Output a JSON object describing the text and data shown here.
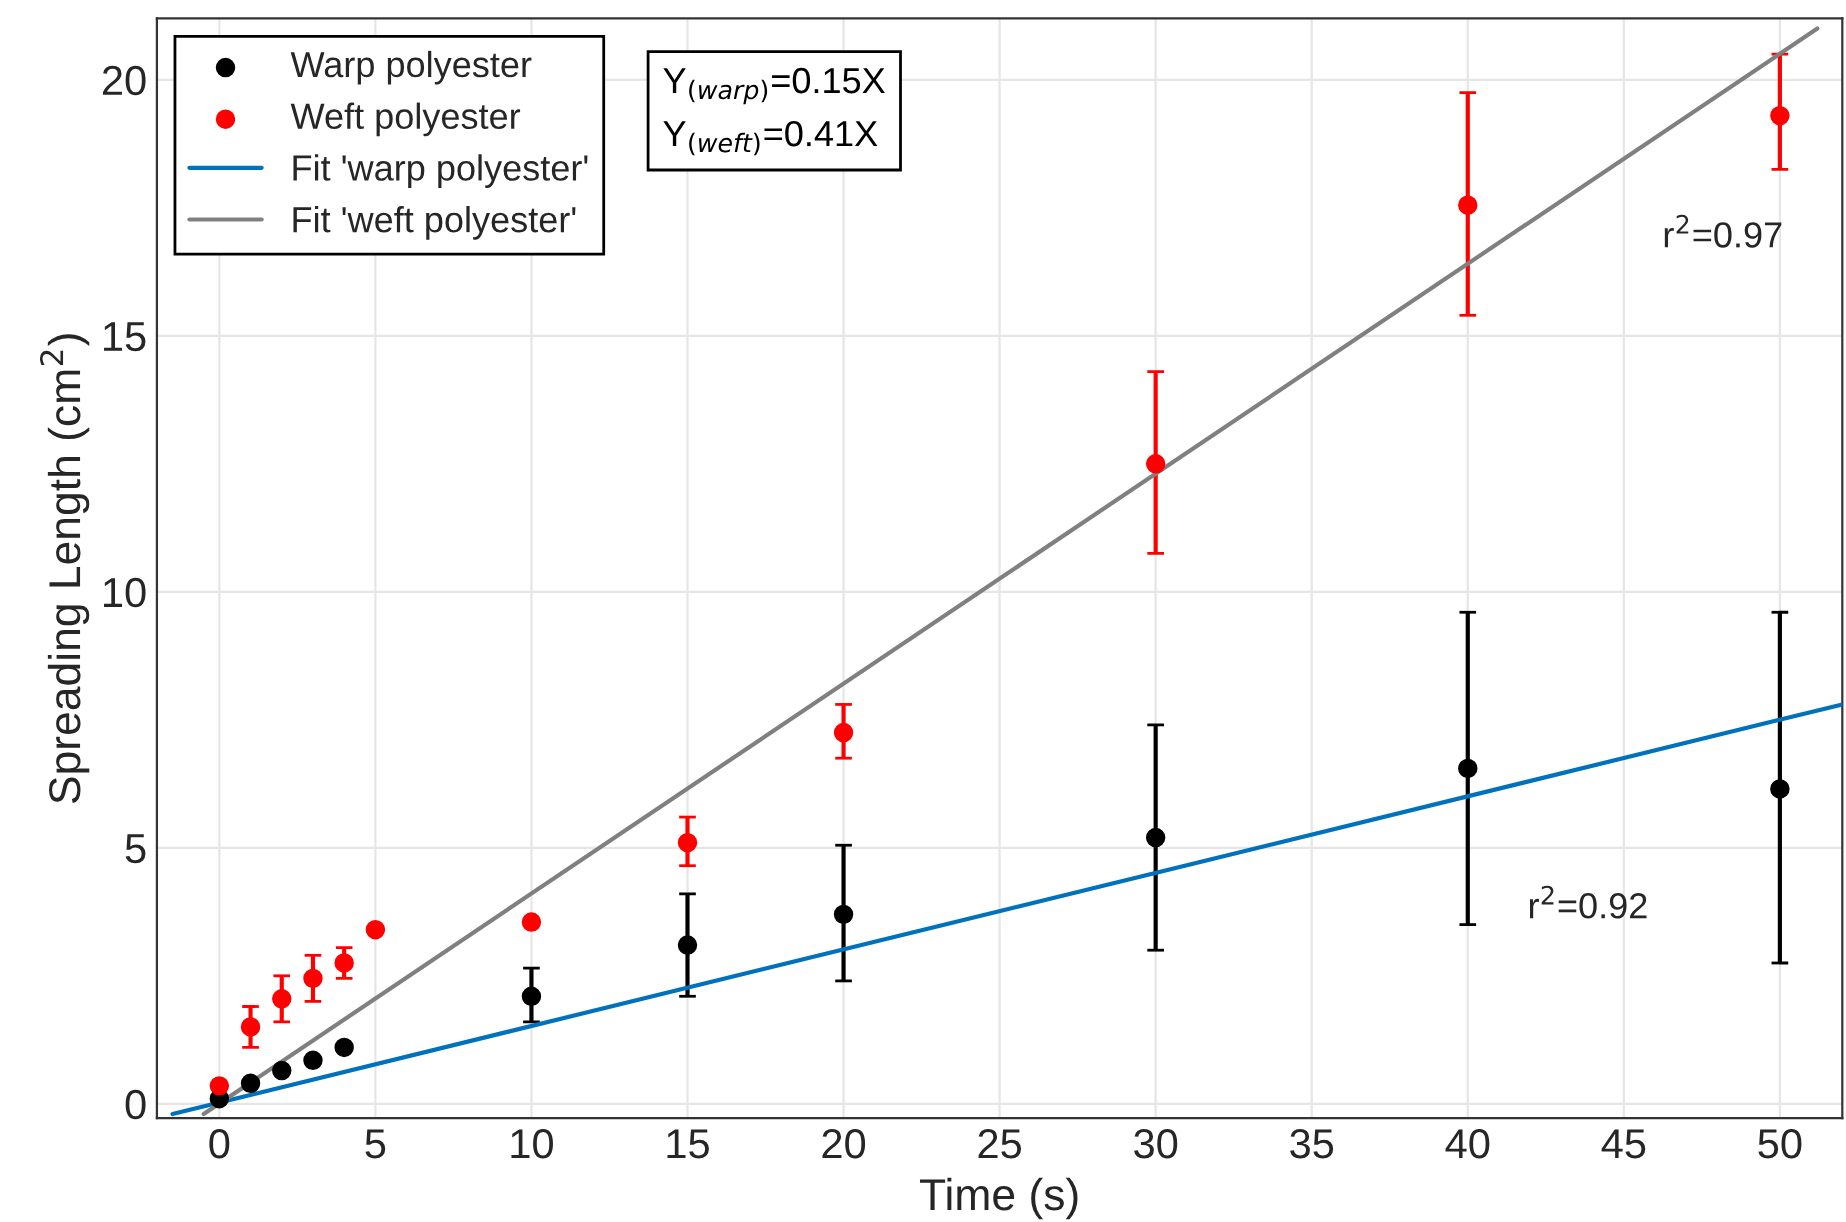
{
  "chart_data": {
    "type": "scatter",
    "xlabel": "Time (s)",
    "ylabel": "Spreading Length (cm$^{2}$)",
    "xlim": [
      -2,
      52
    ],
    "ylim": [
      -0.28,
      21.2
    ],
    "xticks": [
      0,
      5,
      10,
      15,
      20,
      25,
      30,
      35,
      40,
      45,
      50
    ],
    "yticks": [
      0,
      5,
      10,
      15,
      20
    ],
    "grid": true,
    "legend": "top left",
    "marker": "circle",
    "x": [
      0,
      1,
      2,
      3,
      4,
      5,
      10,
      15,
      20,
      30,
      40,
      50
    ],
    "series": [
      {
        "name": "Warp polyester",
        "color": "#000000",
        "x": [
          0,
          1,
          2,
          3,
          4,
          10,
          15,
          20,
          30,
          40,
          50
        ],
        "values": [
          0.1,
          0.4,
          0.65,
          0.85,
          1.1,
          2.1,
          3.1,
          3.7,
          5.2,
          6.55,
          6.15
        ],
        "errors": [
          null,
          null,
          null,
          null,
          null,
          [
            1.6,
            2.65
          ],
          [
            2.1,
            4.1
          ],
          [
            2.4,
            5.05
          ],
          [
            3.0,
            7.4
          ],
          [
            3.5,
            9.6
          ],
          [
            2.75,
            9.6
          ]
        ]
      },
      {
        "name": "Weft polyester",
        "color": "#ff0000",
        "values": [
          0.35,
          1.5,
          2.05,
          2.45,
          2.75,
          3.4,
          3.55,
          5.1,
          7.25,
          12.5,
          17.55,
          19.3
        ],
        "errors": [
          null,
          [
            1.1,
            1.9
          ],
          [
            1.6,
            2.5
          ],
          [
            2.0,
            2.9
          ],
          [
            2.45,
            3.05
          ],
          null,
          null,
          [
            4.65,
            5.6
          ],
          [
            6.75,
            7.8
          ],
          [
            10.75,
            14.3
          ],
          [
            15.4,
            19.75
          ],
          [
            18.25,
            20.5
          ]
        ]
      },
      {
        "name": "Fit 'warp polyester'",
        "type": "line",
        "color": "#0072bd",
        "x": [
          -1.5,
          52
        ],
        "values": [
          -0.2,
          7.8
        ],
        "marker": "none"
      },
      {
        "name": "Fit 'weft polyester'",
        "type": "line",
        "color": "#808080",
        "x": [
          -0.5,
          51.2
        ],
        "values": [
          -0.2,
          21.0
        ],
        "marker": "none"
      }
    ],
    "annotations": [
      "Y$_{(warp)}$=0.15X\nY$_{(weft)}$=0.41X",
      "r$^{2}$=0.97",
      "r$^{2}$=0.92"
    ]
  }
}
